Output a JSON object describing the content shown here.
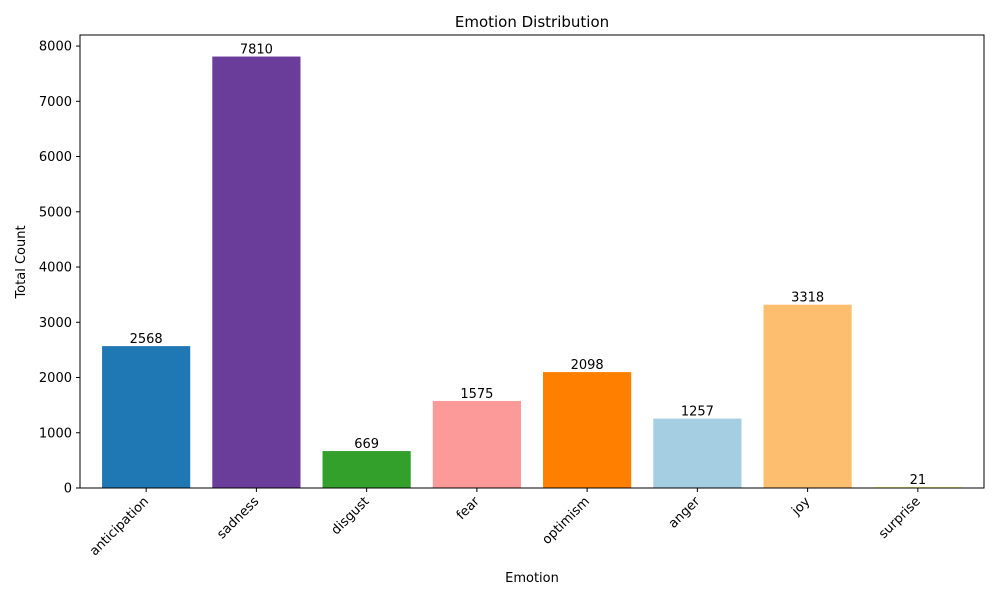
{
  "chart_data": {
    "type": "bar",
    "title": "Emotion Distribution",
    "xlabel": "Emotion",
    "ylabel": "Total Count",
    "categories": [
      "anticipation",
      "sadness",
      "disgust",
      "fear",
      "optimism",
      "anger",
      "joy",
      "surprise"
    ],
    "values": [
      2568,
      7810,
      669,
      1575,
      2098,
      1257,
      3318,
      21
    ],
    "colors": [
      "#1f77b4",
      "#6a3d9a",
      "#33a02c",
      "#fb9a99",
      "#ff7f00",
      "#a6cee3",
      "#fdbf6f",
      "#ffff99"
    ],
    "ylim": [
      0,
      8200
    ],
    "yticks": [
      0,
      1000,
      2000,
      3000,
      4000,
      5000,
      6000,
      7000,
      8000
    ],
    "grid": false,
    "legend": "none"
  }
}
